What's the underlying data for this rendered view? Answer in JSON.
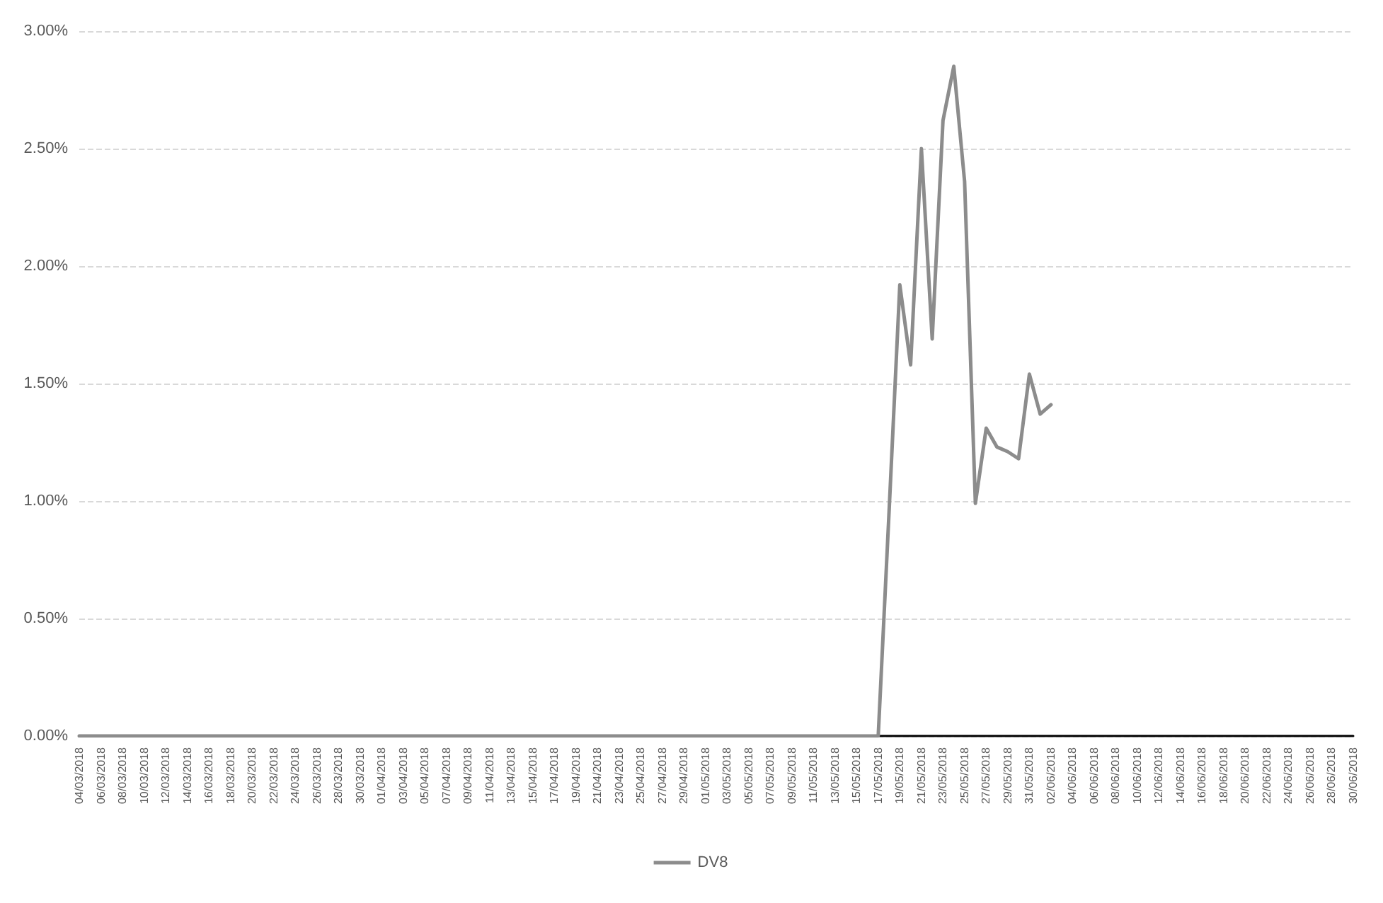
{
  "chart_data": {
    "type": "line",
    "categories": [
      "04/03/2018",
      null,
      "06/03/2018",
      null,
      "08/03/2018",
      null,
      "10/03/2018",
      null,
      "12/03/2018",
      null,
      "14/03/2018",
      null,
      "16/03/2018",
      null,
      "18/03/2018",
      null,
      "20/03/2018",
      null,
      "22/03/2018",
      null,
      "24/03/2018",
      null,
      "26/03/2018",
      null,
      "28/03/2018",
      null,
      "30/03/2018",
      null,
      "01/04/2018",
      null,
      "03/04/2018",
      null,
      "05/04/2018",
      null,
      "07/04/2018",
      null,
      "09/04/2018",
      null,
      "11/04/2018",
      null,
      "13/04/2018",
      null,
      "15/04/2018",
      null,
      "17/04/2018",
      null,
      "19/04/2018",
      null,
      "21/04/2018",
      null,
      "23/04/2018",
      null,
      "25/04/2018",
      null,
      "27/04/2018",
      null,
      "29/04/2018",
      null,
      "01/05/2018",
      null,
      "03/05/2018",
      null,
      "05/05/2018",
      null,
      "07/05/2018",
      null,
      "09/05/2018",
      null,
      "11/05/2018",
      null,
      "13/05/2018",
      null,
      "15/05/2018",
      null,
      "17/05/2018",
      null,
      "19/05/2018",
      null,
      "21/05/2018",
      null,
      "23/05/2018",
      null,
      "25/05/2018",
      null,
      "27/05/2018",
      null,
      "29/05/2018",
      null,
      "31/05/2018",
      null,
      "02/06/2018",
      null,
      "04/06/2018",
      null,
      "06/06/2018",
      null,
      "08/06/2018",
      null,
      "10/06/2018",
      null,
      "12/06/2018",
      null,
      "14/06/2018",
      null,
      "16/06/2018",
      null,
      "18/06/2018",
      null,
      "20/06/2018",
      null,
      "22/06/2018",
      null,
      "24/06/2018",
      null,
      "26/06/2018",
      null,
      "28/06/2018",
      null,
      "30/06/2018"
    ],
    "series": [
      {
        "name": "DV8",
        "color": "#8c8c8c",
        "values": [
          0,
          0,
          0,
          0,
          0,
          0,
          0,
          0,
          0,
          0,
          0,
          0,
          0,
          0,
          0,
          0,
          0,
          0,
          0,
          0,
          0,
          0,
          0,
          0,
          0,
          0,
          0,
          0,
          0,
          0,
          0,
          0,
          0,
          0,
          0,
          0,
          0,
          0,
          0,
          0,
          0,
          0,
          0,
          0,
          0,
          0,
          0,
          0,
          0,
          0,
          0,
          0,
          0,
          0,
          0,
          0,
          0,
          0,
          0,
          0,
          0,
          0,
          0,
          0,
          0,
          0,
          0,
          0,
          0,
          0,
          0,
          0,
          0,
          0,
          0,
          0.95,
          1.92,
          1.58,
          2.5,
          1.69,
          2.62,
          2.85,
          2.36,
          0.99,
          1.31,
          1.23,
          1.21,
          1.18,
          1.54,
          1.37,
          1.41,
          null,
          null,
          null,
          null,
          null,
          null,
          null,
          null,
          null,
          null,
          null,
          null,
          null,
          null,
          null,
          null,
          null,
          null,
          null,
          null,
          null,
          null,
          null,
          null,
          null,
          null,
          null,
          null
        ]
      }
    ],
    "ylim": [
      0,
      3
    ],
    "yticks": [
      {
        "value": 0,
        "label": "0.00%"
      },
      {
        "value": 0.5,
        "label": "0.50%"
      },
      {
        "value": 1,
        "label": "1.00%"
      },
      {
        "value": 1.5,
        "label": "1.50%"
      },
      {
        "value": 2,
        "label": "2.00%"
      },
      {
        "value": 2.5,
        "label": "2.50%"
      },
      {
        "value": 3,
        "label": "3.00%"
      }
    ],
    "grid": "y",
    "legend": "bottom",
    "marker": "none",
    "line_style": "solid"
  }
}
